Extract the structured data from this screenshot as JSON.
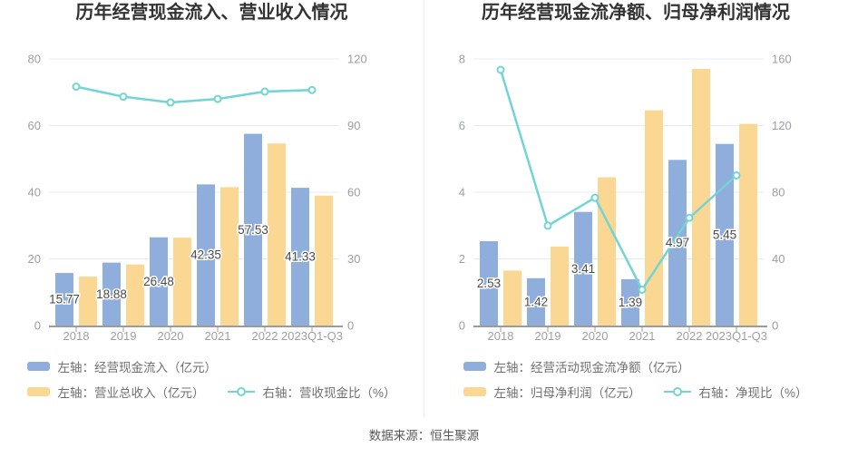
{
  "source_note": "数据来源：恒生聚源",
  "colors": {
    "bar_blue": "#90AEDC",
    "bar_orange": "#FBD794",
    "line_teal": "#72D4D5",
    "grid": "#E5EBF6",
    "axis_line": "#9B9B9B",
    "axis_text": "#9BA0A6",
    "title_text": "#333333",
    "legend_text": "#707070",
    "divider": "#EDEDED"
  },
  "chart_data": [
    {
      "type": "bar+line",
      "title": "历年经营现金流入、营业收入情况",
      "categories": [
        "2018",
        "2019",
        "2020",
        "2021",
        "2022",
        "2023Q1-Q3"
      ],
      "left_axis": {
        "min": 0,
        "max": 80,
        "ticks": [
          0,
          20,
          40,
          60,
          80
        ]
      },
      "right_axis": {
        "min": 0,
        "max": 120,
        "ticks": [
          0,
          30,
          60,
          90,
          120
        ]
      },
      "grid": true,
      "legend_position": "bottom",
      "series": [
        {
          "name": "左轴：经营现金流入（亿元）",
          "type": "bar",
          "axis": "left",
          "color_key": "bar_blue",
          "values": [
            15.77,
            18.88,
            26.48,
            42.35,
            57.53,
            41.33
          ],
          "show_labels": true,
          "labels": [
            "15.77",
            "18.88",
            "26.48",
            "42.35",
            "57.53",
            "41.33"
          ]
        },
        {
          "name": "左轴：营业总收入（亿元）",
          "type": "bar",
          "axis": "left",
          "color_key": "bar_orange",
          "values": [
            14.67,
            18.33,
            26.37,
            41.52,
            54.64,
            38.99
          ],
          "show_labels": false
        },
        {
          "name": "右轴：营收现金比（%）",
          "type": "line",
          "axis": "right",
          "color_key": "line_teal",
          "values": [
            107.5,
            103.0,
            100.4,
            102.0,
            105.3,
            106.0
          ]
        }
      ]
    },
    {
      "type": "bar+line",
      "title": "历年经营现金流净额、归母净利润情况",
      "categories": [
        "2018",
        "2019",
        "2020",
        "2021",
        "2022",
        "2023Q1-Q3"
      ],
      "left_axis": {
        "min": 0,
        "max": 8,
        "ticks": [
          0,
          2,
          4,
          6,
          8
        ]
      },
      "right_axis": {
        "min": 0,
        "max": 160,
        "ticks": [
          0,
          40,
          80,
          120,
          160
        ]
      },
      "grid": true,
      "legend_position": "bottom",
      "series": [
        {
          "name": "左轴：经营活动现金流净额（亿元）",
          "type": "bar",
          "axis": "left",
          "color_key": "bar_blue",
          "values": [
            2.53,
            1.42,
            3.41,
            1.39,
            4.97,
            5.45
          ],
          "show_labels": true,
          "labels": [
            "2.53",
            "1.42",
            "3.41",
            "1.39",
            "4.97",
            "5.45"
          ]
        },
        {
          "name": "左轴：归母净利润（亿元）",
          "type": "bar",
          "axis": "left",
          "color_key": "bar_orange",
          "values": [
            1.65,
            2.37,
            4.45,
            6.46,
            7.7,
            6.05
          ],
          "show_labels": false
        },
        {
          "name": "右轴：净现比（%）",
          "type": "line",
          "axis": "right",
          "color_key": "line_teal",
          "values": [
            153.5,
            59.9,
            76.7,
            21.5,
            64.6,
            90.1
          ]
        }
      ]
    }
  ]
}
